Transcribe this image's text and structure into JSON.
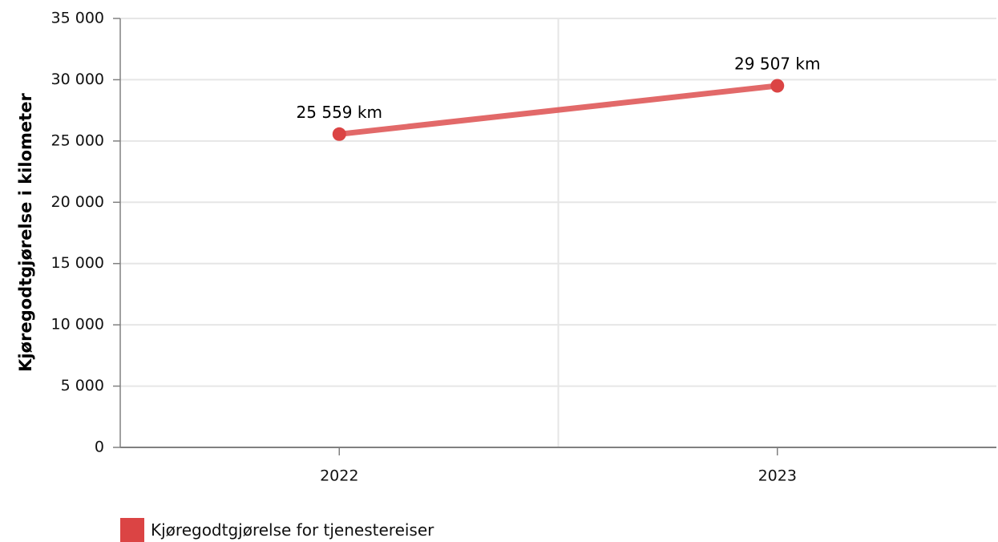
{
  "chart_data": {
    "type": "line",
    "categories": [
      "2022",
      "2023"
    ],
    "series": [
      {
        "name": "Kjøregodtgjørelse for tjenestereiser",
        "values": [
          25559,
          29507
        ],
        "labels": [
          "25 559 km",
          "29 507 km"
        ],
        "color": "#db4444"
      }
    ],
    "ylabel": "Kjøregodtgjørelse i kilometer",
    "xlabel": "",
    "ylim": [
      0,
      35000
    ],
    "yticks": [
      0,
      5000,
      10000,
      15000,
      20000,
      25000,
      30000,
      35000
    ],
    "ytick_labels": [
      "0",
      "5 000",
      "10 000",
      "15 000",
      "20 000",
      "25 000",
      "30 000",
      "35 000"
    ],
    "grid": true,
    "legend_position": "bottom-left"
  },
  "colors": {
    "series": "#db4444",
    "grid": "#e6e6e6",
    "axis": "#808080"
  }
}
